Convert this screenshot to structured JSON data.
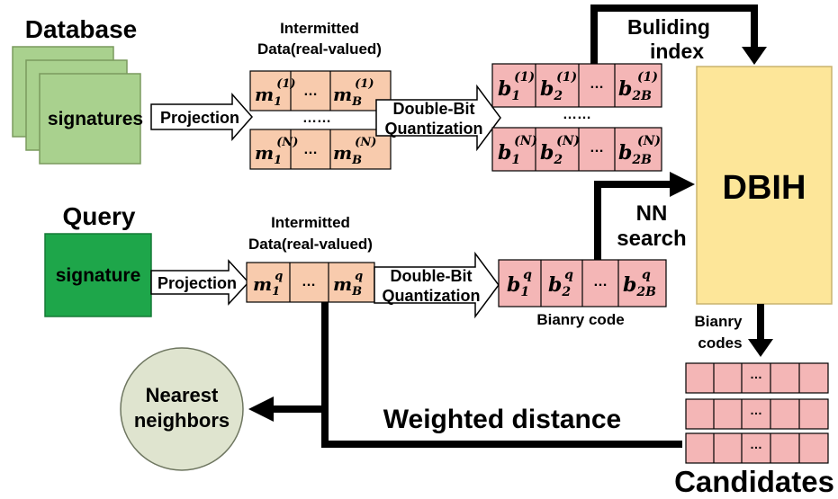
{
  "database": {
    "title": "Database",
    "stack_label": "signatures",
    "projection_label": "Projection",
    "intermediate_line1": "Intermitted",
    "intermediate_line2": "Data(real-valued)",
    "ellipsis_rows": "……",
    "cell_ellipsis": "…",
    "quantization_line1": "Double-Bit",
    "quantization_line2": "Quantization",
    "real_rows": [
      {
        "first_base": "m",
        "first_sub": "1",
        "first_sup": "(1)",
        "last_base": "m",
        "last_sub": "B",
        "last_sup": "(1)"
      },
      {
        "first_base": "m",
        "first_sub": "1",
        "first_sup": "(N)",
        "last_base": "m",
        "last_sub": "B",
        "last_sup": "(N)"
      }
    ],
    "binary_rows": [
      {
        "c1_sub": "1",
        "c2_sub": "2",
        "c3_sub": "2B",
        "sup": "(1)",
        "base": "b"
      },
      {
        "c1_sub": "1",
        "c2_sub": "2",
        "c3_sub": "2B",
        "sup": "(N)",
        "base": "b"
      }
    ]
  },
  "index": {
    "building_line1": "Buliding",
    "building_line2": "index",
    "dbih_label": "DBIH",
    "nn_line1": "NN",
    "nn_line2": "search"
  },
  "query": {
    "title": "Query",
    "box_label": "signature",
    "projection_label": "Projection",
    "intermediate_line1": "Intermitted",
    "intermediate_line2": "Data(real-valued)",
    "quantization_line1": "Double-Bit",
    "quantization_line2": "Quantization",
    "cell_ellipsis": "…",
    "real_row": {
      "first_base": "m",
      "first_sub": "1",
      "first_sup": "q",
      "last_base": "m",
      "last_sub": "B",
      "last_sup": "q"
    },
    "binary_row": {
      "base": "b",
      "sup": "q",
      "c1_sub": "1",
      "c2_sub": "2",
      "c3_sub": "2B"
    },
    "binary_caption": "Bianry code"
  },
  "output": {
    "bianry_codes_line1": "Bianry",
    "bianry_codes_line2": "codes",
    "candidates_label": "Candidates",
    "candidate_cell_ellipsis": "…",
    "weighted_distance_label": "Weighted distance",
    "nearest_line1": "Nearest",
    "nearest_line2": "neighbors"
  },
  "colors": {
    "db_green": "#a9d18e",
    "query_green": "#1ea64a",
    "real_orange": "#f8cbad",
    "binary_pink": "#f4b6b6",
    "dbih_yellow": "#fde699",
    "nearest_gray": "#dfe4cf"
  }
}
